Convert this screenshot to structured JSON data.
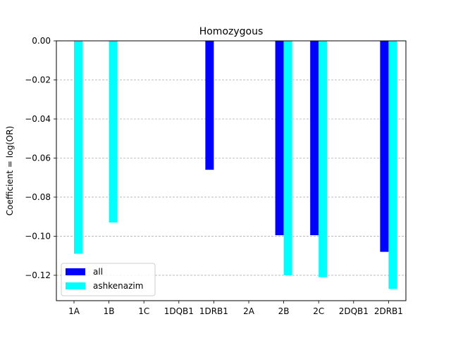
{
  "chart_data": {
    "type": "bar",
    "title": "Homozygous",
    "xlabel": "",
    "ylabel": "Coefficient = log(OR)",
    "categories": [
      "1A",
      "1B",
      "1C",
      "1DQB1",
      "1DRB1",
      "2A",
      "2B",
      "2C",
      "2DQB1",
      "2DRB1"
    ],
    "series": [
      {
        "name": "all",
        "color": "#0000ff",
        "values": [
          null,
          null,
          null,
          null,
          -0.066,
          null,
          -0.0995,
          -0.0995,
          null,
          -0.108
        ]
      },
      {
        "name": "ashkenazim",
        "color": "#00ffff",
        "values": [
          -0.109,
          -0.093,
          null,
          null,
          null,
          null,
          -0.12,
          -0.121,
          null,
          -0.127
        ]
      }
    ],
    "ylim": [
      -0.133,
      0.0
    ],
    "yticks": [
      0.0,
      -0.02,
      -0.04,
      -0.06,
      -0.08,
      -0.1,
      -0.12
    ],
    "ytick_labels": [
      "0.00",
      "−0.02",
      "−0.04",
      "−0.06",
      "−0.08",
      "−0.10",
      "−0.12"
    ],
    "grid": "y-dashed",
    "legend_position": "lower-left"
  }
}
